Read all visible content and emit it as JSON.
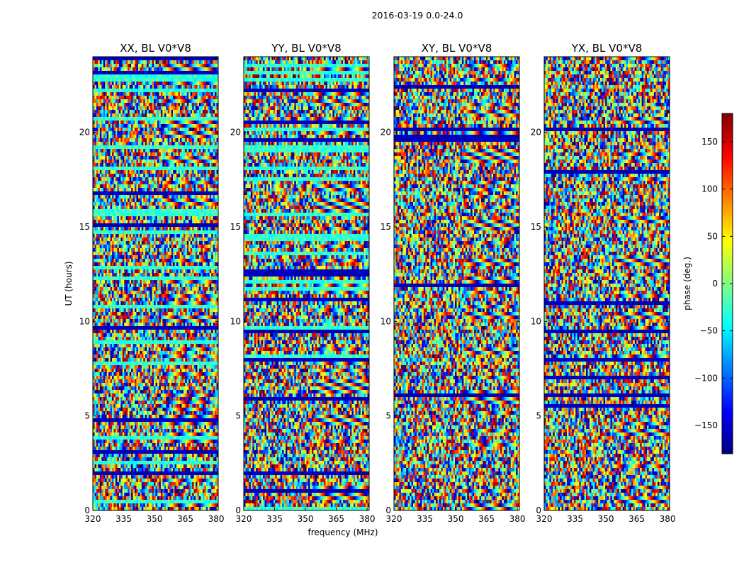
{
  "figure": {
    "suptitle": "2016-03-19 0.0-24.0",
    "xlabel": "frequency (MHz)",
    "ylabel": "UT (hours)",
    "colorbar_label": "phase (deg.)",
    "colorbar_ticks": [
      "150",
      "100",
      "50",
      "0",
      "−50",
      "−100",
      "−150"
    ],
    "colorbar_tick_values": [
      150,
      100,
      50,
      0,
      -50,
      -100,
      -150
    ],
    "colorbar_range": [
      -180,
      180
    ],
    "colormap": "jet"
  },
  "chart_data": {
    "type": "heatmap",
    "x_range": [
      320,
      381
    ],
    "y_range": [
      0,
      24
    ],
    "x_ticks": [
      320,
      335,
      350,
      365,
      380
    ],
    "y_ticks": [
      0,
      5,
      10,
      15,
      20
    ],
    "panels": [
      {
        "title": "XX, BL V0*V8",
        "show_ylabels": true
      },
      {
        "title": "YY, BL V0*V8",
        "show_ylabels": true
      },
      {
        "title": "XY, BL V0*V8",
        "show_ylabels": true
      },
      {
        "title": "YX, BL V0*V8",
        "show_ylabels": true
      }
    ]
  }
}
